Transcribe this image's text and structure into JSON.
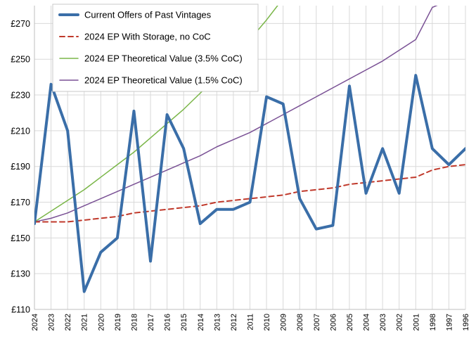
{
  "chart_data": {
    "type": "line",
    "title": "",
    "xlabel": "",
    "ylabel": "",
    "ylim": [
      110,
      280
    ],
    "yticks": [
      110,
      130,
      150,
      170,
      190,
      210,
      230,
      250,
      270
    ],
    "ytick_labels": [
      "£110",
      "£130",
      "£150",
      "£170",
      "£190",
      "£210",
      "£230",
      "£250",
      "£270"
    ],
    "categories": [
      "2024",
      "2023",
      "2022",
      "2021",
      "2020",
      "2019",
      "2018",
      "2017",
      "2016",
      "2015",
      "2014",
      "2013",
      "2012",
      "2011",
      "2010",
      "2009",
      "2008",
      "2007",
      "2006",
      "2005",
      "2004",
      "2003",
      "2002",
      "2001",
      "1998",
      "1997",
      "1996"
    ],
    "grid": true,
    "legend_position": "top-left",
    "series": [
      {
        "name": "Current Offers of Past Vintages",
        "color": "#3a6ea8",
        "style": "solid-thick",
        "values": [
          158,
          236,
          210,
          120,
          142,
          150,
          221,
          137,
          219,
          200,
          158,
          166,
          166,
          170,
          229,
          225,
          172,
          155,
          157,
          235,
          175,
          200,
          175,
          241,
          200,
          191,
          200
        ]
      },
      {
        "name": "2024 EP With Storage, no CoC",
        "color": "#c0392b",
        "style": "dashed",
        "values": [
          159,
          159,
          159,
          160,
          161,
          162,
          164,
          165,
          166,
          167,
          168,
          170,
          171,
          172,
          173,
          174,
          176,
          177,
          178,
          180,
          181,
          182,
          183,
          184,
          188,
          190,
          191
        ]
      },
      {
        "name": "2024 EP Theoretical Value (3.5% CoC)",
        "color": "#7ab648",
        "style": "solid",
        "values": [
          159,
          165,
          171,
          177,
          184,
          191,
          198,
          206,
          214,
          222,
          231,
          240,
          250,
          261,
          272,
          284,
          null,
          null,
          null,
          null,
          null,
          null,
          null,
          null,
          null,
          null,
          null
        ]
      },
      {
        "name": "2024 EP Theoretical Value (1.5% CoC)",
        "color": "#7a5195",
        "style": "solid",
        "values": [
          159,
          161,
          164,
          168,
          172,
          176,
          180,
          184,
          188,
          192,
          196,
          201,
          205,
          209,
          214,
          219,
          224,
          229,
          234,
          239,
          244,
          249,
          255,
          261,
          279,
          283,
          287
        ]
      }
    ]
  }
}
